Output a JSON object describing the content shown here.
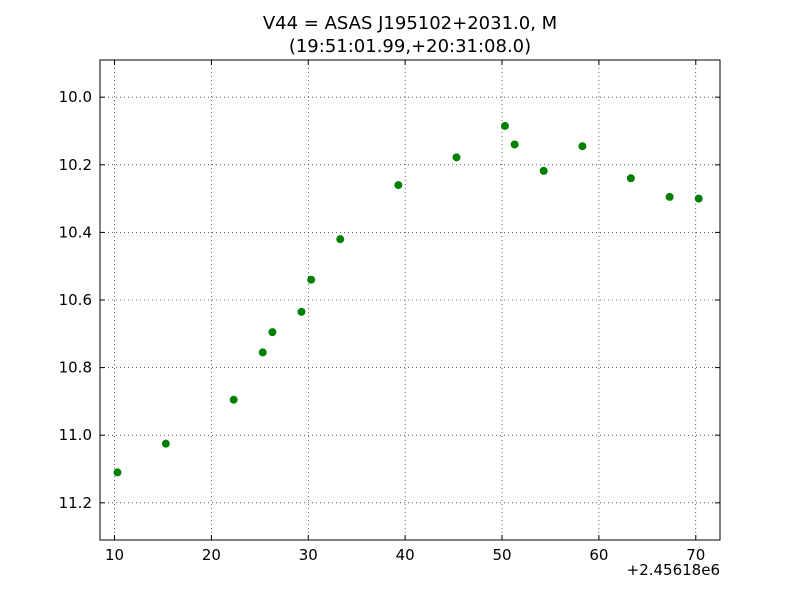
{
  "chart_data": {
    "type": "scatter",
    "title_line1": "V44 = ASAS J195102+2031.0, M",
    "title_line2": "(19:51:01.99,+20:31:08.0)",
    "xlabel": "",
    "ylabel": "",
    "x_offset_label": "+2.45618e6",
    "xlim": [
      8.5,
      72.5
    ],
    "ylim": [
      11.31,
      9.89
    ],
    "y_inverted": true,
    "x_ticks": [
      10,
      20,
      30,
      40,
      50,
      60,
      70
    ],
    "x_tick_labels": [
      "10",
      "20",
      "30",
      "40",
      "50",
      "60",
      "70"
    ],
    "y_ticks": [
      10.0,
      10.2,
      10.4,
      10.6,
      10.8,
      11.0,
      11.2
    ],
    "y_tick_labels": [
      "10.0",
      "10.2",
      "10.4",
      "10.6",
      "10.8",
      "11.0",
      "11.2"
    ],
    "grid": true,
    "marker_color": "#008000",
    "series": [
      {
        "x": [
          10.3,
          15.3,
          22.3,
          25.3,
          26.3,
          29.3,
          30.3,
          33.3,
          39.3,
          45.3,
          50.3,
          51.3,
          54.3,
          58.3,
          63.3,
          67.3,
          70.3
        ],
        "y": [
          11.11,
          11.025,
          10.895,
          10.755,
          10.695,
          10.635,
          10.54,
          10.42,
          10.26,
          10.178,
          10.085,
          10.14,
          10.218,
          10.145,
          10.24,
          10.295,
          10.3
        ]
      }
    ]
  }
}
